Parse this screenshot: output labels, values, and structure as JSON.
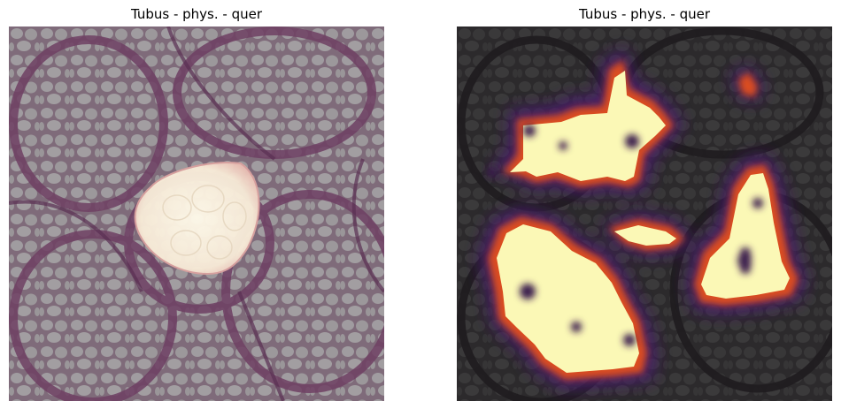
{
  "figure": {
    "panels": [
      {
        "title": "Tubus - phys. - quer",
        "content": "histology-with-segmentation-mask",
        "overlay_color": "#fff6dc"
      },
      {
        "title": "Tubus - phys. - quer",
        "content": "histology-with-attention-heatmap",
        "colormap": "inferno"
      }
    ]
  },
  "colors": {
    "tissue_pink": "#8e5f7e",
    "tissue_gray": "#8d8c8e",
    "heat_low": "#3a1a5e",
    "heat_mid": "#e2501e",
    "heat_high": "#fcfdbf"
  }
}
